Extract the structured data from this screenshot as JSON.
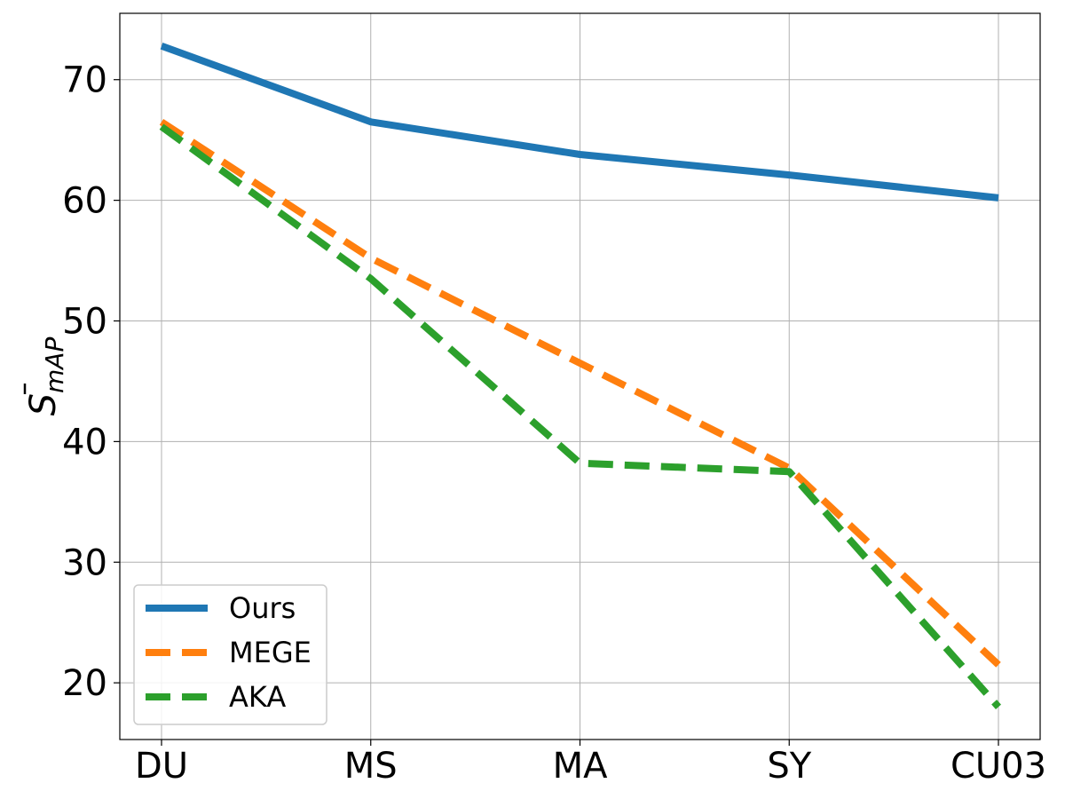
{
  "chart_data": {
    "type": "line",
    "categories": [
      "DU",
      "MS",
      "MA",
      "SY",
      "CU03"
    ],
    "series": [
      {
        "name": "Ours",
        "values": [
          72.8,
          66.5,
          63.8,
          62.1,
          60.2
        ],
        "color": "#1f77b4",
        "style": "solid"
      },
      {
        "name": "MEGE",
        "values": [
          66.5,
          55.2,
          46.5,
          37.8,
          21.5
        ],
        "color": "#ff7f0e",
        "style": "dashed"
      },
      {
        "name": "AKA",
        "values": [
          66.1,
          53.5,
          38.2,
          37.5,
          18.0
        ],
        "color": "#2ca02c",
        "style": "dashed"
      }
    ],
    "title": "",
    "xlabel": "",
    "ylabel": {
      "base": "S",
      "subscript": "mAP"
    },
    "ylim": [
      15.3,
      75.5
    ],
    "yticks": [
      "20",
      "30",
      "40",
      "50",
      "60",
      "70"
    ],
    "grid": true,
    "legend_position": "lower-left"
  }
}
